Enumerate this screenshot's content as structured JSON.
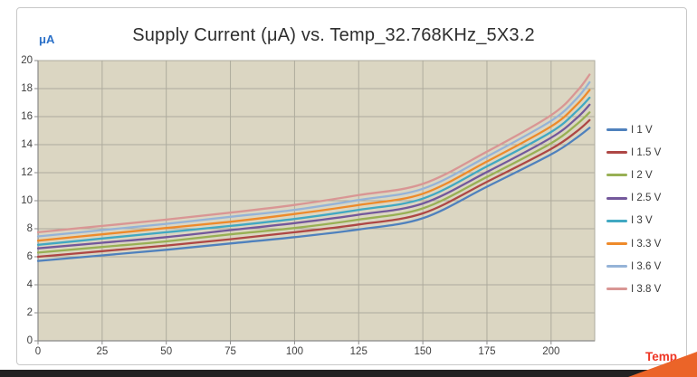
{
  "window": {
    "background": "#ffffff",
    "bottom_bar_color": "#222222",
    "corner_accent_color": "#eb6428"
  },
  "chart": {
    "title": "Supply Current (μA) vs. Temp_32.768KHz_5X3.2",
    "y_unit_label": "μA",
    "x_axis_label": "Temp",
    "title_color": "#2e2e2e",
    "y_unit_color": "#2a70c8",
    "x_axis_label_color": "#ee3524",
    "plot_background": "#dbd6c2",
    "grid_color": "#aeab9d",
    "axis_color": "#8a8a8a",
    "tick_label_color": "#3f3f3f",
    "frame_border_color": "#c8c8c8"
  },
  "chart_data": {
    "type": "line",
    "title": "Supply Current (μA) vs. Temp_32.768KHz_5X3.2",
    "xlabel": "Temp",
    "ylabel": "μA",
    "xlim": [
      0,
      217
    ],
    "ylim": [
      0,
      20
    ],
    "x_ticks": [
      0,
      25,
      50,
      75,
      100,
      125,
      150,
      175,
      200
    ],
    "y_ticks": [
      0,
      2,
      4,
      6,
      8,
      10,
      12,
      14,
      16,
      18,
      20
    ],
    "grid": true,
    "legend_position": "right",
    "x": [
      0,
      25,
      50,
      75,
      100,
      125,
      150,
      175,
      200,
      210,
      215
    ],
    "series": [
      {
        "name": "I 1 V",
        "color": "#4f81bd",
        "values": [
          5.7,
          6.1,
          6.5,
          6.95,
          7.4,
          7.95,
          8.75,
          11.0,
          13.3,
          14.5,
          15.2
        ]
      },
      {
        "name": "I 1.5 V",
        "color": "#ae4745",
        "values": [
          6.0,
          6.4,
          6.8,
          7.25,
          7.75,
          8.3,
          9.1,
          11.35,
          13.7,
          14.95,
          15.75
        ]
      },
      {
        "name": "I 2 V",
        "color": "#98b054",
        "values": [
          6.3,
          6.7,
          7.1,
          7.6,
          8.05,
          8.65,
          9.45,
          11.7,
          14.1,
          15.45,
          16.3
        ]
      },
      {
        "name": "I 2.5 V",
        "color": "#73589b",
        "values": [
          6.6,
          7.0,
          7.4,
          7.9,
          8.4,
          9.0,
          9.8,
          12.05,
          14.5,
          15.9,
          16.85
        ]
      },
      {
        "name": "I 3 V",
        "color": "#41a8c2",
        "values": [
          6.85,
          7.3,
          7.75,
          8.2,
          8.7,
          9.35,
          10.15,
          12.45,
          14.9,
          16.4,
          17.35
        ]
      },
      {
        "name": "I 3.3 V",
        "color": "#ee8a2a",
        "values": [
          7.15,
          7.6,
          8.05,
          8.5,
          9.05,
          9.7,
          10.5,
          12.8,
          15.3,
          16.85,
          17.9
        ]
      },
      {
        "name": "I 3.6 V",
        "color": "#95b3d7",
        "values": [
          7.45,
          7.9,
          8.35,
          8.85,
          9.35,
          10.05,
          10.85,
          13.15,
          15.7,
          17.3,
          18.45
        ]
      },
      {
        "name": "I 3.8 V",
        "color": "#d99694",
        "values": [
          7.75,
          8.2,
          8.65,
          9.15,
          9.7,
          10.4,
          11.2,
          13.5,
          16.1,
          17.8,
          19.0
        ]
      }
    ]
  }
}
